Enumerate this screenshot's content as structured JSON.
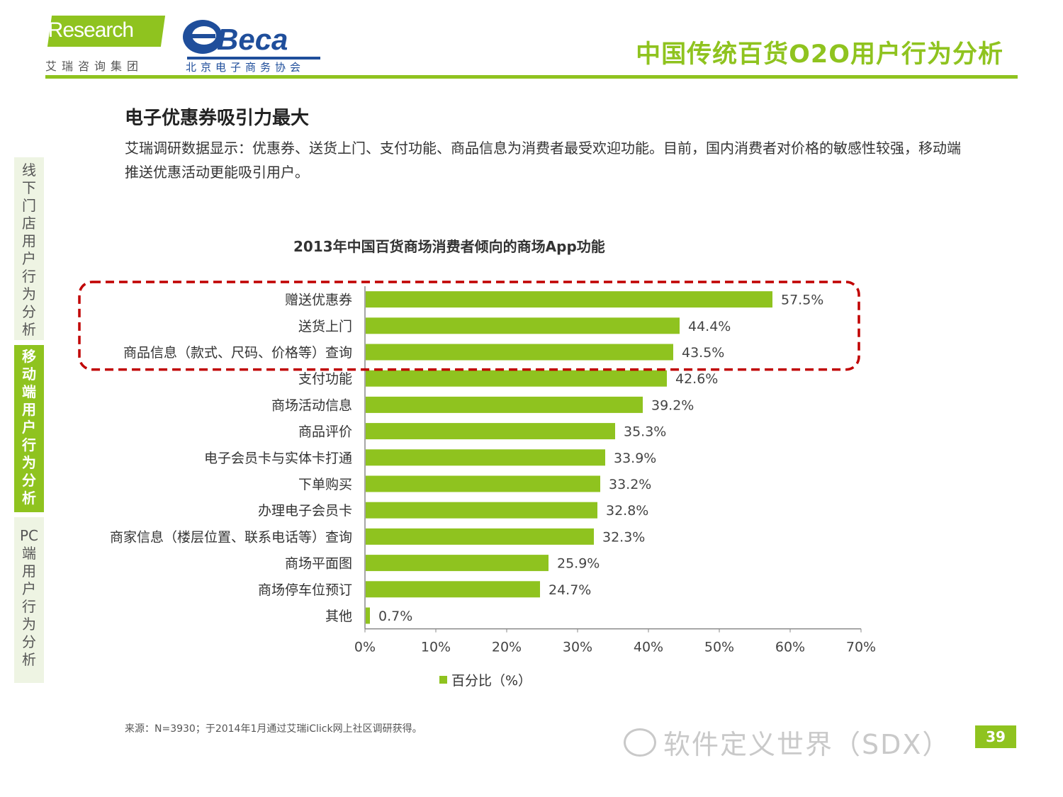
{
  "header": {
    "logo_left": {
      "wordmark": "iResearch",
      "subtitle": "艾瑞咨询集团"
    },
    "logo_right": {
      "wordmark": "Beca",
      "subtitle": "北京电子商务协会"
    },
    "report_title": "中国传统百货O2O用户行为分析",
    "accent_color": "#8fc31f"
  },
  "side_nav": [
    {
      "label": "线下门店用户行为分析",
      "active": false
    },
    {
      "label": "移动端用户行为分析",
      "active": true
    },
    {
      "label": "PC端用户行为分析",
      "active": false
    }
  ],
  "section": {
    "title": "电子优惠券吸引力最大",
    "body": "艾瑞调研数据显示：优惠券、送货上门、支付功能、商品信息为消费者最受欢迎功能。目前，国内消费者对价格的敏感性较强，移动端推送优惠活动更能吸引用户。"
  },
  "chart_data": {
    "type": "bar",
    "orientation": "horizontal",
    "title": "2013年中国百货商场消费者倾向的商场App功能",
    "categories": [
      "赠送优惠券",
      "送货上门",
      "商品信息（款式、尺码、价格等）查询",
      "支付功能",
      "商场活动信息",
      "商品评价",
      "电子会员卡与实体卡打通",
      "下单购买",
      "办理电子会员卡",
      "商家信息（楼层位置、联系电话等）查询",
      "商场平面图",
      "商场停车位预订",
      "其他"
    ],
    "series": [
      {
        "name": "百分比（%）",
        "values": [
          57.5,
          44.4,
          43.5,
          42.6,
          39.2,
          35.3,
          33.9,
          33.2,
          32.8,
          32.3,
          25.9,
          24.7,
          0.7
        ],
        "value_labels": [
          "57.5%",
          "44.4%",
          "43.5%",
          "42.6%",
          "39.2%",
          "35.3%",
          "33.9%",
          "33.2%",
          "32.8%",
          "32.3%",
          "25.9%",
          "24.7%",
          "0.7%"
        ]
      }
    ],
    "xlim": [
      0,
      70
    ],
    "x_ticks": [
      0,
      10,
      20,
      30,
      40,
      50,
      60,
      70
    ],
    "x_tick_labels": [
      "0%",
      "10%",
      "20%",
      "30%",
      "40%",
      "50%",
      "60%",
      "70%"
    ],
    "grid": false,
    "legend_position": "bottom",
    "highlight": {
      "categories": [
        "赠送优惠券",
        "送货上门",
        "商品信息（款式、尺码、价格等）查询"
      ],
      "style": "dashed-rounded-box",
      "color": "#c00000"
    },
    "bar_color": "#8fc31f"
  },
  "footer": {
    "source": "来源：N=3930；于2014年1月通过艾瑞iClick网上社区调研获得。",
    "watermark": "软件定义世界（SDX）",
    "page_number": "39"
  }
}
